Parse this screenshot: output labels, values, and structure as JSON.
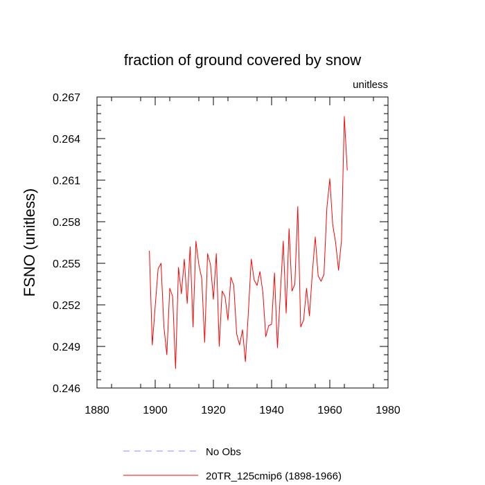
{
  "chart_data": {
    "type": "line",
    "title": "fraction of ground covered by snow",
    "units_label": "unitless",
    "ylabel": "FSNO  (unitless)",
    "xlabel": "",
    "xlim": [
      1880,
      1980
    ],
    "ylim": [
      0.246,
      0.267
    ],
    "x_ticks": [
      1880,
      1900,
      1920,
      1940,
      1960,
      1980
    ],
    "x_tick_labels": [
      "1880",
      "1900",
      "1920",
      "1940",
      "1960",
      "1980"
    ],
    "y_ticks": [
      0.246,
      0.249,
      0.252,
      0.255,
      0.258,
      0.261,
      0.264,
      0.267
    ],
    "y_tick_labels": [
      "0.246",
      "0.249",
      "0.252",
      "0.255",
      "0.258",
      "0.261",
      "0.264",
      "0.267"
    ],
    "grid": false,
    "legend_position": "bottom-center",
    "series": [
      {
        "name": "No Obs",
        "color": "#8c8cff",
        "style": "dashed",
        "x": [],
        "values": []
      },
      {
        "name": "20TR_125cmip6 (1898-1966)",
        "color": "#ff0000",
        "style": "solid",
        "x": [
          1898,
          1899,
          1900,
          1901,
          1902,
          1903,
          1904,
          1905,
          1906,
          1907,
          1908,
          1909,
          1910,
          1911,
          1912,
          1913,
          1914,
          1915,
          1916,
          1917,
          1918,
          1919,
          1920,
          1921,
          1922,
          1923,
          1924,
          1925,
          1926,
          1927,
          1928,
          1929,
          1930,
          1931,
          1932,
          1933,
          1934,
          1935,
          1936,
          1937,
          1938,
          1939,
          1940,
          1941,
          1942,
          1943,
          1944,
          1945,
          1946,
          1947,
          1948,
          1949,
          1950,
          1951,
          1952,
          1953,
          1954,
          1955,
          1956,
          1957,
          1958,
          1959,
          1960,
          1961,
          1962,
          1963,
          1964,
          1965,
          1966
        ],
        "values": [
          0.2559,
          0.2491,
          0.2519,
          0.2546,
          0.255,
          0.2504,
          0.2484,
          0.2532,
          0.2526,
          0.2474,
          0.2547,
          0.2528,
          0.2553,
          0.2521,
          0.2562,
          0.2504,
          0.2566,
          0.2549,
          0.2539,
          0.2493,
          0.2557,
          0.2549,
          0.2524,
          0.2557,
          0.249,
          0.253,
          0.2526,
          0.2509,
          0.254,
          0.2534,
          0.2499,
          0.2491,
          0.2502,
          0.2479,
          0.2514,
          0.2553,
          0.2538,
          0.2534,
          0.2544,
          0.2529,
          0.2497,
          0.2505,
          0.2506,
          0.2543,
          0.2489,
          0.2528,
          0.2566,
          0.2514,
          0.2575,
          0.253,
          0.2535,
          0.2591,
          0.2504,
          0.2509,
          0.2532,
          0.2512,
          0.2543,
          0.2569,
          0.2541,
          0.2537,
          0.2542,
          0.259,
          0.2611,
          0.2578,
          0.2565,
          0.2545,
          0.2566,
          0.2656,
          0.2617
        ]
      }
    ]
  }
}
